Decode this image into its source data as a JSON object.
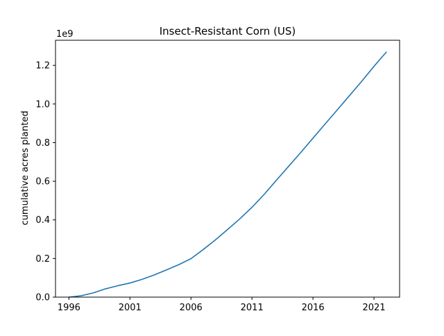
{
  "chart_data": {
    "type": "line",
    "title": "Insect-Resistant Corn (US)",
    "xlabel": "",
    "ylabel": "cumulative acres planted",
    "y_offset_label": "1e9",
    "xlim": [
      1994.9,
      2023.1
    ],
    "ylim": [
      0,
      1.33
    ],
    "y_unit_multiplier": 1000000000,
    "x_ticks": [
      1996,
      2001,
      2006,
      2011,
      2016,
      2021
    ],
    "y_ticks": [
      0.0,
      0.2,
      0.4,
      0.6,
      0.8,
      1.0,
      1.2
    ],
    "y_tick_labels": [
      "0.0",
      "0.2",
      "0.4",
      "0.6",
      "0.8",
      "1.0",
      "1.2"
    ],
    "grid": false,
    "legend": "none",
    "series": [
      {
        "color": "#1f77b4",
        "x": [
          1996,
          1997,
          1998,
          1999,
          2000,
          2001,
          2002,
          2003,
          2004,
          2005,
          2006,
          2007,
          2008,
          2009,
          2010,
          2011,
          2012,
          2013,
          2014,
          2015,
          2016,
          2017,
          2018,
          2019,
          2020,
          2021,
          2022
        ],
        "y": [
          0.0,
          0.007,
          0.022,
          0.043,
          0.059,
          0.073,
          0.092,
          0.115,
          0.141,
          0.168,
          0.199,
          0.246,
          0.296,
          0.35,
          0.405,
          0.465,
          0.532,
          0.605,
          0.677,
          0.749,
          0.823,
          0.897,
          0.97,
          1.044,
          1.118,
          1.195,
          1.268
        ]
      }
    ]
  }
}
